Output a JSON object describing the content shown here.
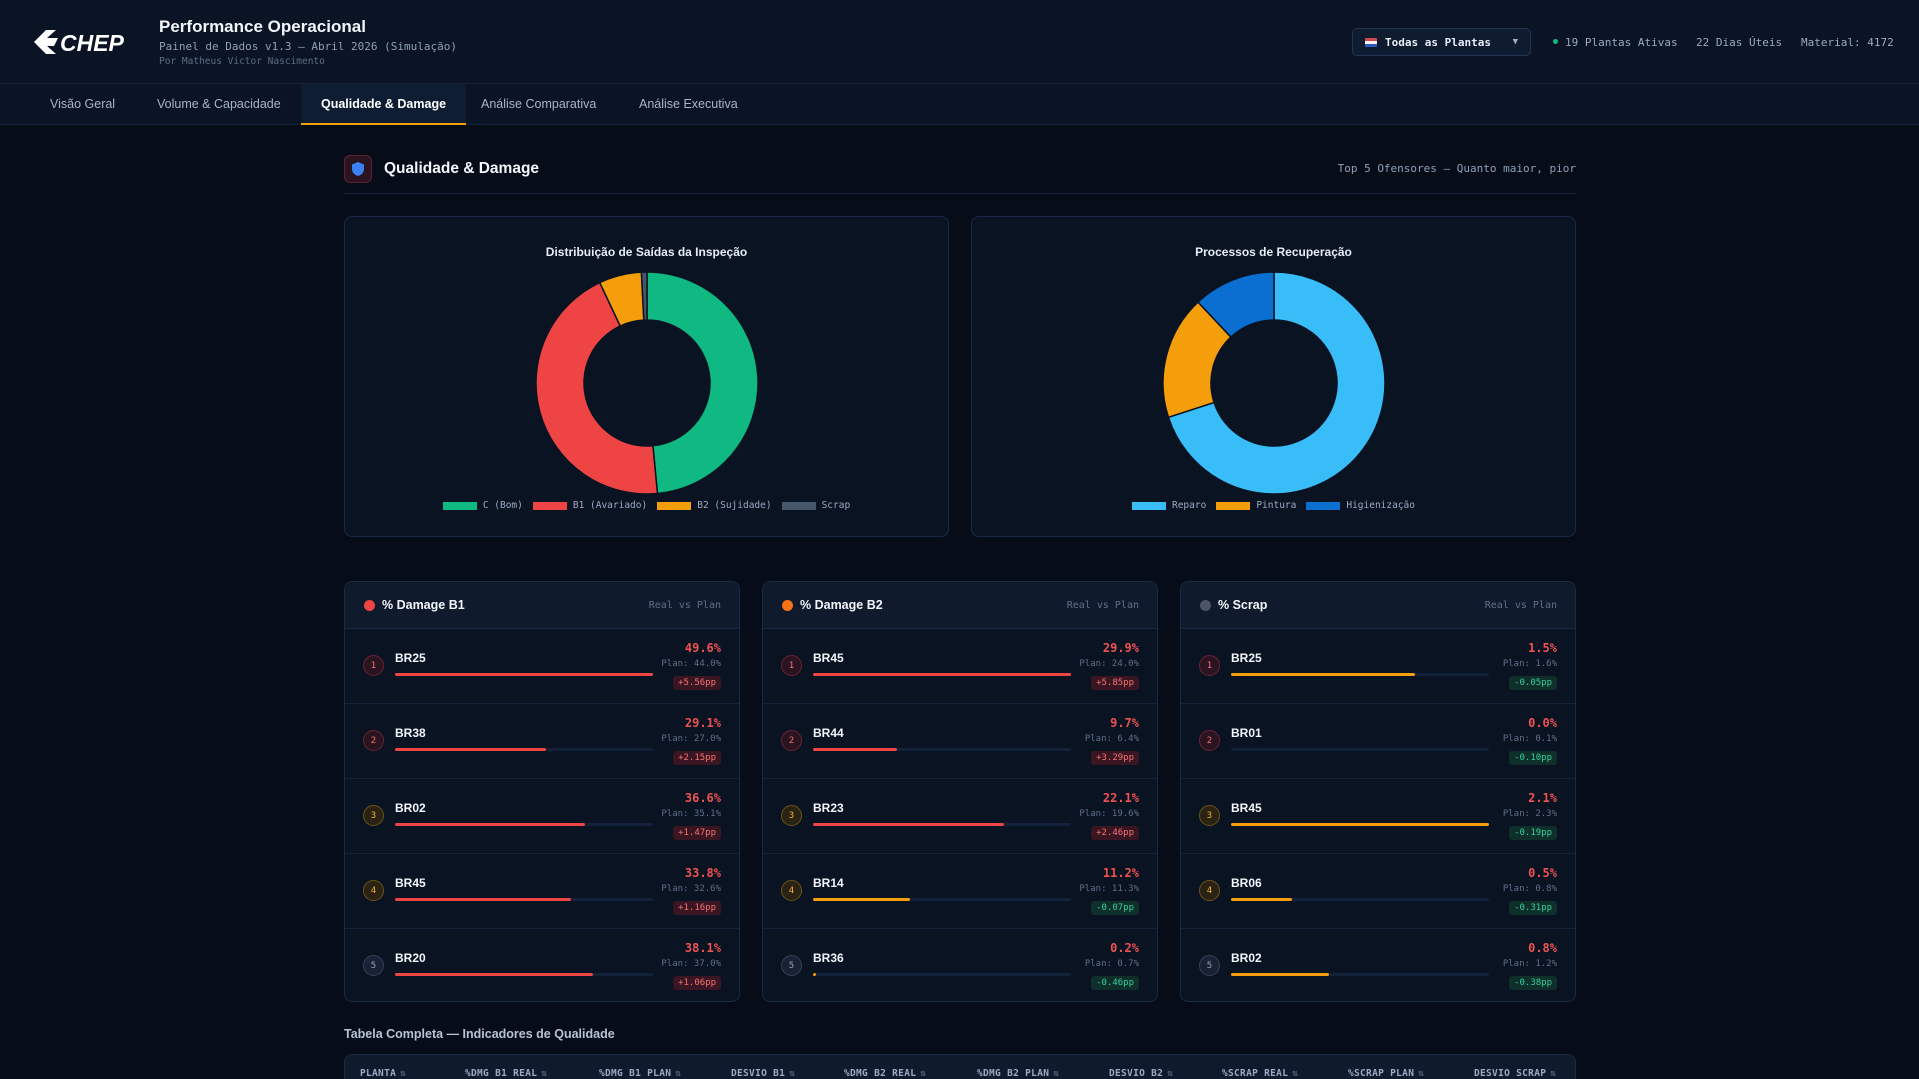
{
  "header": {
    "logo_text": "CHEP",
    "title": "Performance Operacional",
    "subtitle": "Painel de Dados v1.3 — Abril 2026 (Simulação)",
    "author": "Por Matheus Victor Nascimento",
    "plant_select": "Todas as Plantas",
    "stats": [
      "19 Plantas Ativas",
      "22 Dias Úteis",
      "Material: 4172"
    ]
  },
  "tabs": [
    "Visão Geral",
    "Volume & Capacidade",
    "Qualidade & Damage",
    "Análise Comparativa",
    "Análise Executiva"
  ],
  "active_tab": "Qualidade & Damage",
  "section": {
    "title": "Qualidade & Damage",
    "note": "Top 5 Ofensores — Quanto maior, pior"
  },
  "chart_data": [
    {
      "type": "pie",
      "title": "Distribuição de Saídas da Inspeção",
      "categories": [
        "C (Bom)",
        "B1 (Avariado)",
        "B2 (Sujidade)",
        "Scrap"
      ],
      "values": [
        48.5,
        44.5,
        6.2,
        0.8
      ],
      "colors": [
        "#10b981",
        "#ef4444",
        "#f59e0b",
        "#475569"
      ]
    },
    {
      "type": "pie",
      "title": "Processos de Recuperação",
      "categories": [
        "Reparo",
        "Pintura",
        "Higienização"
      ],
      "values": [
        70,
        18,
        12
      ],
      "colors": [
        "#38bdf8",
        "#f59e0b",
        "#0a6fd1"
      ]
    }
  ],
  "rankings": [
    {
      "title": "% Damage B1",
      "sub": "Real vs Plan",
      "dot_color": "#ef4444",
      "rows": [
        {
          "rank": "1",
          "plant": "BR25",
          "real": "49.6%",
          "plan": "Plan: 44.0%",
          "dev": "+5.56pp",
          "bad": true,
          "level": 1.0,
          "color": "#ef4444"
        },
        {
          "rank": "2",
          "plant": "BR38",
          "real": "29.1%",
          "plan": "Plan: 27.0%",
          "dev": "+2.15pp",
          "bad": true,
          "level": 0.587,
          "color": "#ef4444"
        },
        {
          "rank": "3",
          "plant": "BR02",
          "real": "36.6%",
          "plan": "Plan: 35.1%",
          "dev": "+1.47pp",
          "bad": true,
          "level": 0.738,
          "color": "#ef4444"
        },
        {
          "rank": "4",
          "plant": "BR45",
          "real": "33.8%",
          "plan": "Plan: 32.6%",
          "dev": "+1.16pp",
          "bad": true,
          "level": 0.681,
          "color": "#ef4444"
        },
        {
          "rank": "5",
          "plant": "BR20",
          "real": "38.1%",
          "plan": "Plan: 37.0%",
          "dev": "+1.06pp",
          "bad": true,
          "level": 0.768,
          "color": "#ef4444"
        }
      ]
    },
    {
      "title": "% Damage B2",
      "sub": "Real vs Plan",
      "dot_color": "#f97316",
      "rows": [
        {
          "rank": "1",
          "plant": "BR45",
          "real": "29.9%",
          "plan": "Plan: 24.0%",
          "dev": "+5.85pp",
          "bad": true,
          "level": 1.0,
          "color": "#ef4444"
        },
        {
          "rank": "2",
          "plant": "BR44",
          "real": "9.7%",
          "plan": "Plan: 6.4%",
          "dev": "+3.29pp",
          "bad": true,
          "level": 0.324,
          "color": "#ef4444"
        },
        {
          "rank": "3",
          "plant": "BR23",
          "real": "22.1%",
          "plan": "Plan: 19.6%",
          "dev": "+2.46pp",
          "bad": true,
          "level": 0.739,
          "color": "#ef4444"
        },
        {
          "rank": "4",
          "plant": "BR14",
          "real": "11.2%",
          "plan": "Plan: 11.3%",
          "dev": "-0.07pp",
          "bad": false,
          "level": 0.375,
          "color": "#f59e0b"
        },
        {
          "rank": "5",
          "plant": "BR36",
          "real": "0.2%",
          "plan": "Plan: 0.7%",
          "dev": "-0.46pp",
          "bad": false,
          "level": 0.01,
          "color": "#f59e0b"
        }
      ]
    },
    {
      "title": "% Scrap",
      "sub": "Real vs Plan",
      "dot_color": "#4b5563",
      "rows": [
        {
          "rank": "1",
          "plant": "BR25",
          "real": "1.5%",
          "plan": "Plan: 1.6%",
          "dev": "-0.05pp",
          "bad": false,
          "level": 0.714,
          "color": "#f59e0b"
        },
        {
          "rank": "2",
          "plant": "BR01",
          "real": "0.0%",
          "plan": "Plan: 0.1%",
          "dev": "-0.10pp",
          "bad": false,
          "level": 0.0,
          "color": "#f59e0b"
        },
        {
          "rank": "3",
          "plant": "BR45",
          "real": "2.1%",
          "plan": "Plan: 2.3%",
          "dev": "-0.19pp",
          "bad": false,
          "level": 1.0,
          "color": "#f59e0b"
        },
        {
          "rank": "4",
          "plant": "BR06",
          "real": "0.5%",
          "plan": "Plan: 0.8%",
          "dev": "-0.31pp",
          "bad": false,
          "level": 0.238,
          "color": "#f59e0b"
        },
        {
          "rank": "5",
          "plant": "BR02",
          "real": "0.8%",
          "plan": "Plan: 1.2%",
          "dev": "-0.38pp",
          "bad": false,
          "level": 0.381,
          "color": "#f59e0b"
        }
      ]
    }
  ],
  "table": {
    "title": "Tabela Completa — Indicadores de Qualidade",
    "columns": [
      "PLANTA",
      "%DMG B1 REAL",
      "%DMG B1 PLAN",
      "DESVIO B1",
      "%DMG B2 REAL",
      "%DMG B2 PLAN",
      "DESVIO B2",
      "%SCRAP REAL",
      "%SCRAP PLAN",
      "DESVIO SCRAP"
    ],
    "sort_glyph": "⇅"
  }
}
